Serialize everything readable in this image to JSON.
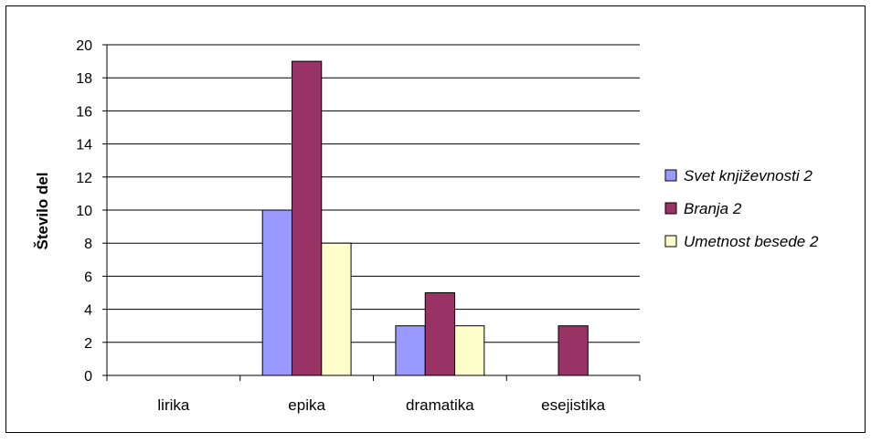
{
  "chart_data": {
    "type": "bar",
    "title": "",
    "xlabel": "",
    "ylabel": "Število del",
    "categories": [
      "lirika",
      "epika",
      "dramatika",
      "esejistika"
    ],
    "series": [
      {
        "name": "Svet književnosti 2",
        "values": [
          0,
          10,
          3,
          0
        ],
        "color": "#9999FF"
      },
      {
        "name": "Branja 2",
        "values": [
          0,
          19,
          5,
          3
        ],
        "color": "#993366"
      },
      {
        "name": "Umetnost besede 2",
        "values": [
          0,
          8,
          3,
          0
        ],
        "color": "#FFFFCC"
      }
    ],
    "ylim": [
      0,
      20
    ],
    "yticks": [
      0,
      2,
      4,
      6,
      8,
      10,
      12,
      14,
      16,
      18,
      20
    ],
    "grid": true,
    "legend_position": "right"
  }
}
